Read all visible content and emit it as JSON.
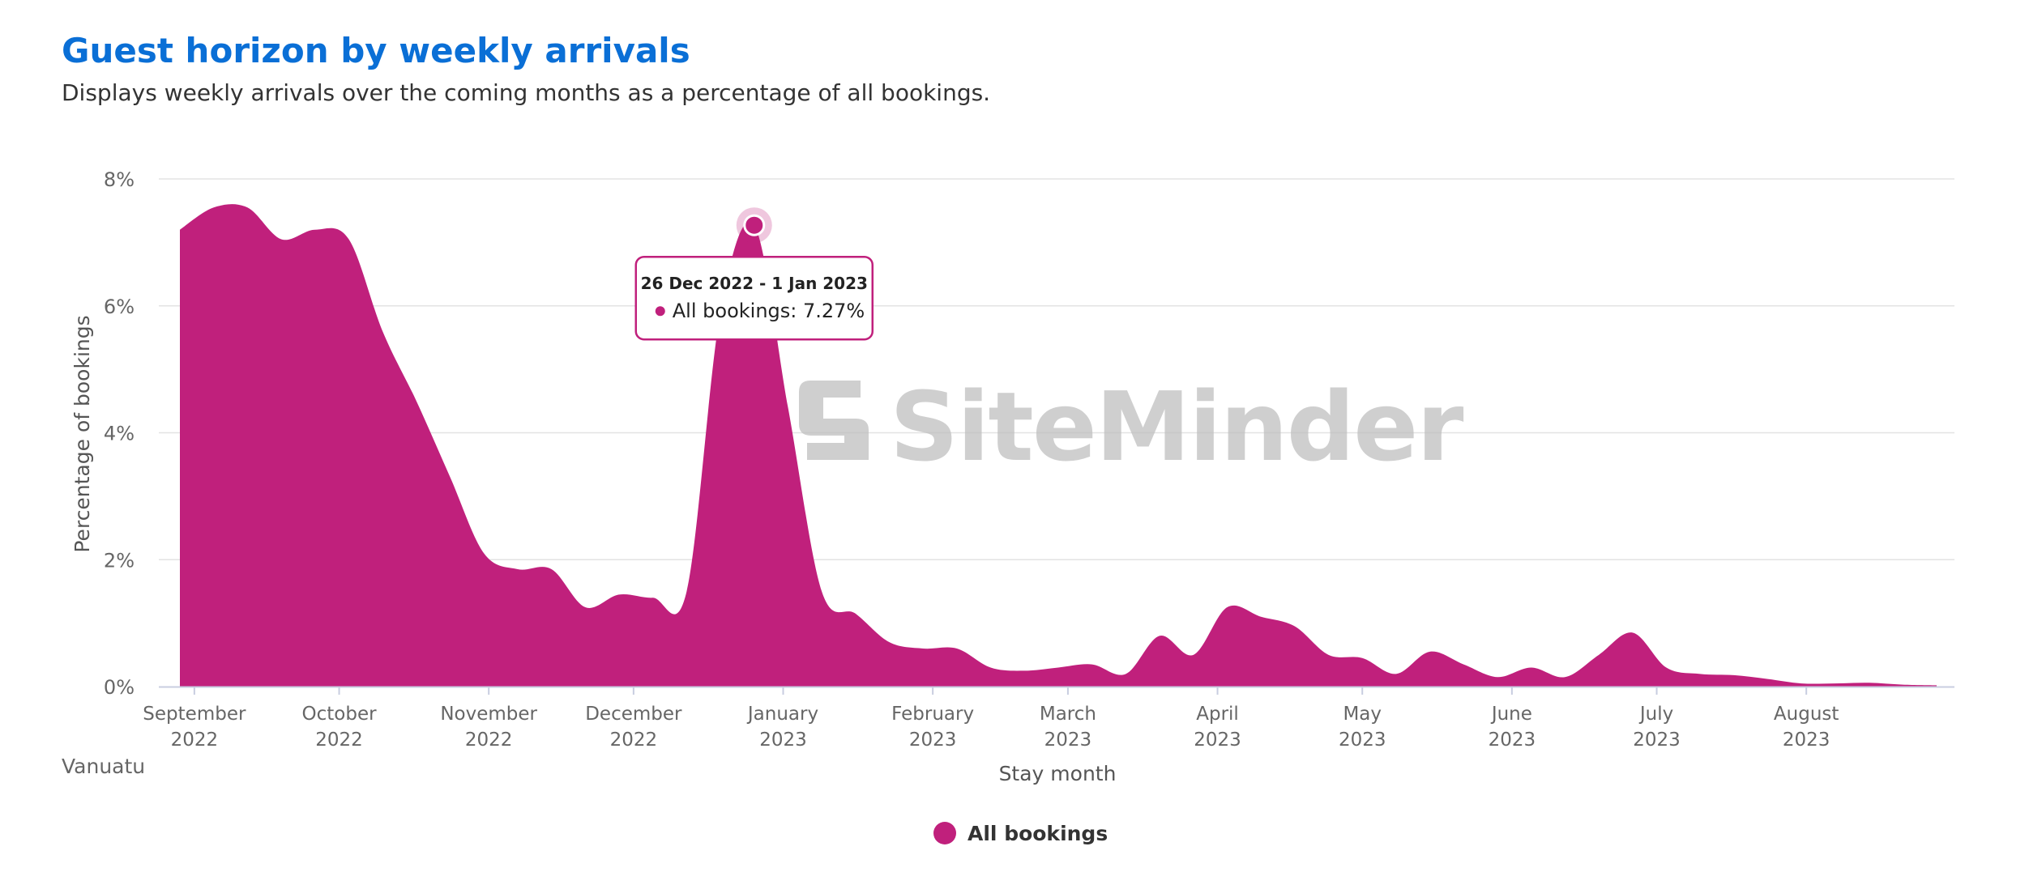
{
  "header": {
    "title": "Guest horizon by weekly arrivals",
    "subtitle": "Displays weekly arrivals over the coming months as a percentage of all bookings."
  },
  "region_label": "Vanuatu",
  "watermark": "SiteMinder",
  "colors": {
    "series": "#c0207c",
    "title": "#0a6fd6",
    "grid": "#e3e3e3"
  },
  "tooltip": {
    "date_range": "26 Dec 2022 - 1 Jan 2023",
    "label": "All bookings: 7.27%",
    "week_index": 17,
    "value": 7.27
  },
  "chart_data": {
    "type": "area",
    "title": "Guest horizon by weekly arrivals",
    "xlabel": "Stay month",
    "ylabel": "Percentage of bookings",
    "ylim": [
      0,
      8
    ],
    "y_ticks": [
      "0%",
      "2%",
      "4%",
      "6%",
      "8%"
    ],
    "x_ticks": [
      {
        "month": "September",
        "year": "2022"
      },
      {
        "month": "October",
        "year": "2022"
      },
      {
        "month": "November",
        "year": "2022"
      },
      {
        "month": "December",
        "year": "2022"
      },
      {
        "month": "January",
        "year": "2023"
      },
      {
        "month": "February",
        "year": "2023"
      },
      {
        "month": "March",
        "year": "2023"
      },
      {
        "month": "April",
        "year": "2023"
      },
      {
        "month": "May",
        "year": "2023"
      },
      {
        "month": "June",
        "year": "2023"
      },
      {
        "month": "July",
        "year": "2023"
      },
      {
        "month": "August",
        "year": "2023"
      }
    ],
    "grid": true,
    "legend_position": "bottom-center",
    "series": [
      {
        "name": "All bookings",
        "x_start": "2022-08-29",
        "interval": "weekly",
        "values": [
          7.2,
          7.55,
          7.55,
          7.05,
          7.2,
          7.05,
          5.6,
          4.5,
          3.3,
          2.1,
          1.85,
          1.85,
          1.25,
          1.45,
          1.4,
          1.5,
          5.9,
          7.27,
          4.4,
          1.5,
          1.15,
          0.7,
          0.6,
          0.6,
          0.3,
          0.25,
          0.3,
          0.35,
          0.2,
          0.8,
          0.5,
          1.25,
          1.1,
          0.95,
          0.5,
          0.45,
          0.2,
          0.55,
          0.35,
          0.15,
          0.3,
          0.15,
          0.5,
          0.85,
          0.3,
          0.2,
          0.18,
          0.12,
          0.05,
          0.05,
          0.06,
          0.03,
          0.02
        ]
      }
    ]
  }
}
